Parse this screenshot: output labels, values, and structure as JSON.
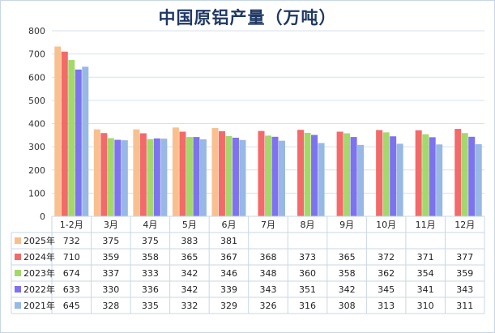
{
  "chart_data": {
    "type": "bar",
    "title": "中国原铝产量（万吨）",
    "xlabel": "",
    "ylabel": "",
    "ylim": [
      0,
      800
    ],
    "yticks": [
      "0",
      "100",
      "200",
      "300",
      "400",
      "500",
      "600",
      "700",
      "800"
    ],
    "grid": true,
    "legend": "table-below",
    "categories": [
      "1-2月",
      "3月",
      "4月",
      "5月",
      "6月",
      "7月",
      "8月",
      "9月",
      "10月",
      "11月",
      "12月"
    ],
    "series": [
      {
        "name": "2025年",
        "color": "#f9c08f",
        "values": [
          732,
          375,
          375,
          383,
          381,
          null,
          null,
          null,
          null,
          null,
          null
        ]
      },
      {
        "name": "2024年",
        "color": "#f26a6a",
        "values": [
          710,
          359,
          358,
          365,
          367,
          368,
          373,
          365,
          372,
          371,
          377
        ]
      },
      {
        "name": "2023年",
        "color": "#a5d86b",
        "values": [
          674,
          337,
          333,
          342,
          346,
          348,
          360,
          358,
          362,
          354,
          359
        ]
      },
      {
        "name": "2022年",
        "color": "#7d72f0",
        "values": [
          633,
          330,
          336,
          342,
          339,
          343,
          351,
          342,
          345,
          341,
          343
        ]
      },
      {
        "name": "2021年",
        "color": "#98b8e6",
        "values": [
          645,
          328,
          335,
          332,
          329,
          326,
          316,
          308,
          313,
          310,
          311
        ]
      }
    ]
  }
}
